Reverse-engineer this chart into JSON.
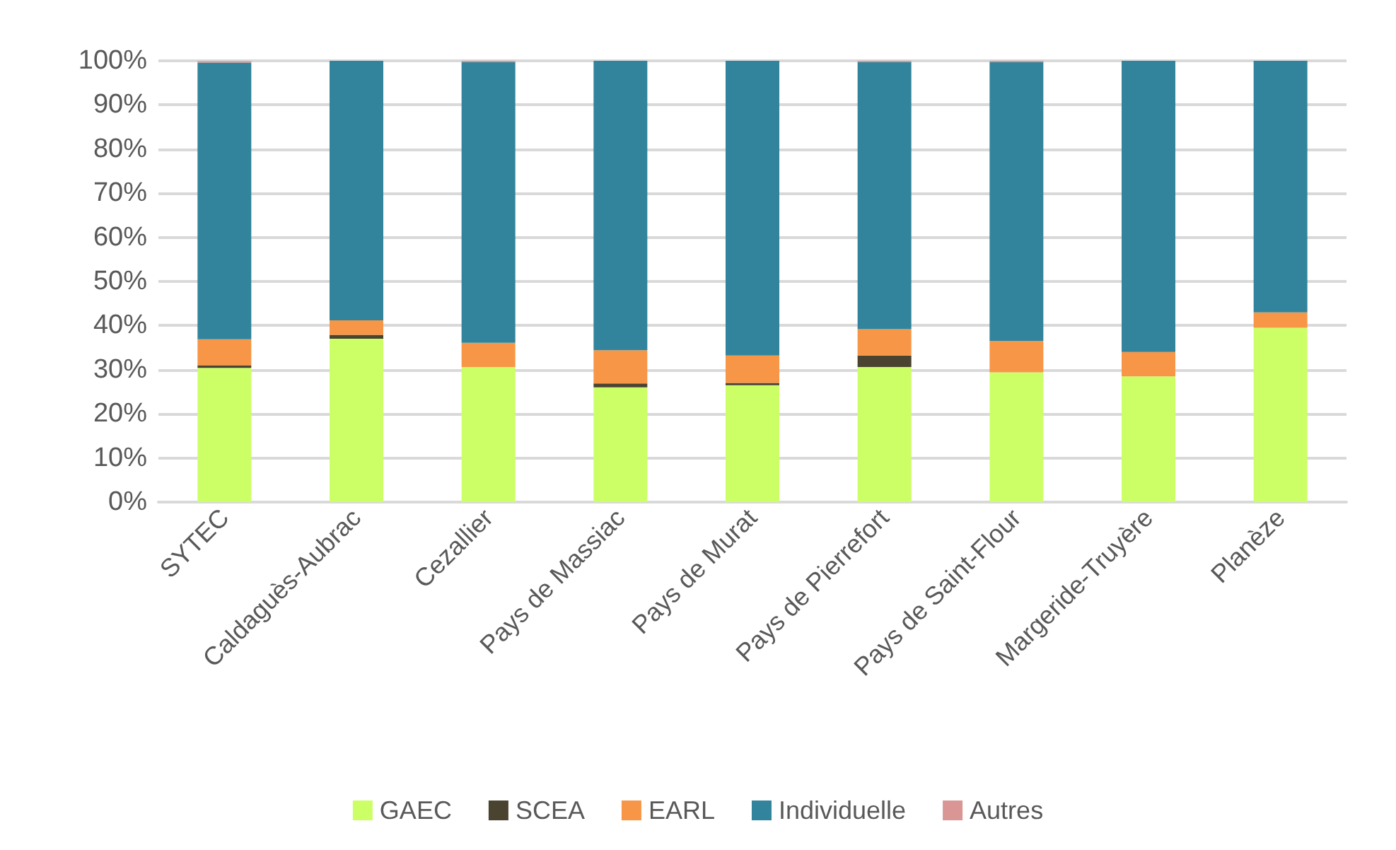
{
  "chart_data": {
    "type": "bar",
    "stacked": true,
    "categories": [
      "SYTEC",
      "Caldaguès-Aubrac",
      "Cezallier",
      "Pays de Massiac",
      "Pays de Murat",
      "Pays de Pierrefort",
      "Pays de Saint-Flour",
      "Margeride-Truyère",
      "Planèze"
    ],
    "series": [
      {
        "name": "GAEC",
        "color": "#ccff66",
        "values": [
          30.4,
          37.0,
          30.6,
          26.0,
          26.5,
          30.6,
          29.4,
          28.5,
          39.5
        ]
      },
      {
        "name": "SCEA",
        "color": "#4a4330",
        "values": [
          0.6,
          0.9,
          0,
          0.9,
          0.5,
          2.6,
          0,
          0,
          0
        ]
      },
      {
        "name": "EARL",
        "color": "#f79646",
        "values": [
          5.9,
          3.3,
          5.5,
          7.5,
          6.2,
          6.0,
          7.1,
          5.5,
          3.5
        ]
      },
      {
        "name": "Individuelle",
        "color": "#31849b",
        "values": [
          62.7,
          58.8,
          63.6,
          65.6,
          66.8,
          60.5,
          63.2,
          66.0,
          57.0
        ]
      },
      {
        "name": "Autres",
        "color": "#da9694",
        "values": [
          0.3,
          0,
          0.3,
          0,
          0,
          0.3,
          0.3,
          0,
          0
        ]
      }
    ],
    "ylim": [
      0,
      100
    ],
    "yticks": [
      {
        "value": 0,
        "label": "0%"
      },
      {
        "value": 10,
        "label": "10%"
      },
      {
        "value": 20,
        "label": "20%"
      },
      {
        "value": 30,
        "label": "30%"
      },
      {
        "value": 40,
        "label": "40%"
      },
      {
        "value": 50,
        "label": "50%"
      },
      {
        "value": 60,
        "label": "60%"
      },
      {
        "value": 70,
        "label": "70%"
      },
      {
        "value": 80,
        "label": "80%"
      },
      {
        "value": 90,
        "label": "90%"
      },
      {
        "value": 100,
        "label": "100%"
      }
    ],
    "grid": "y",
    "legend": "bottom"
  }
}
